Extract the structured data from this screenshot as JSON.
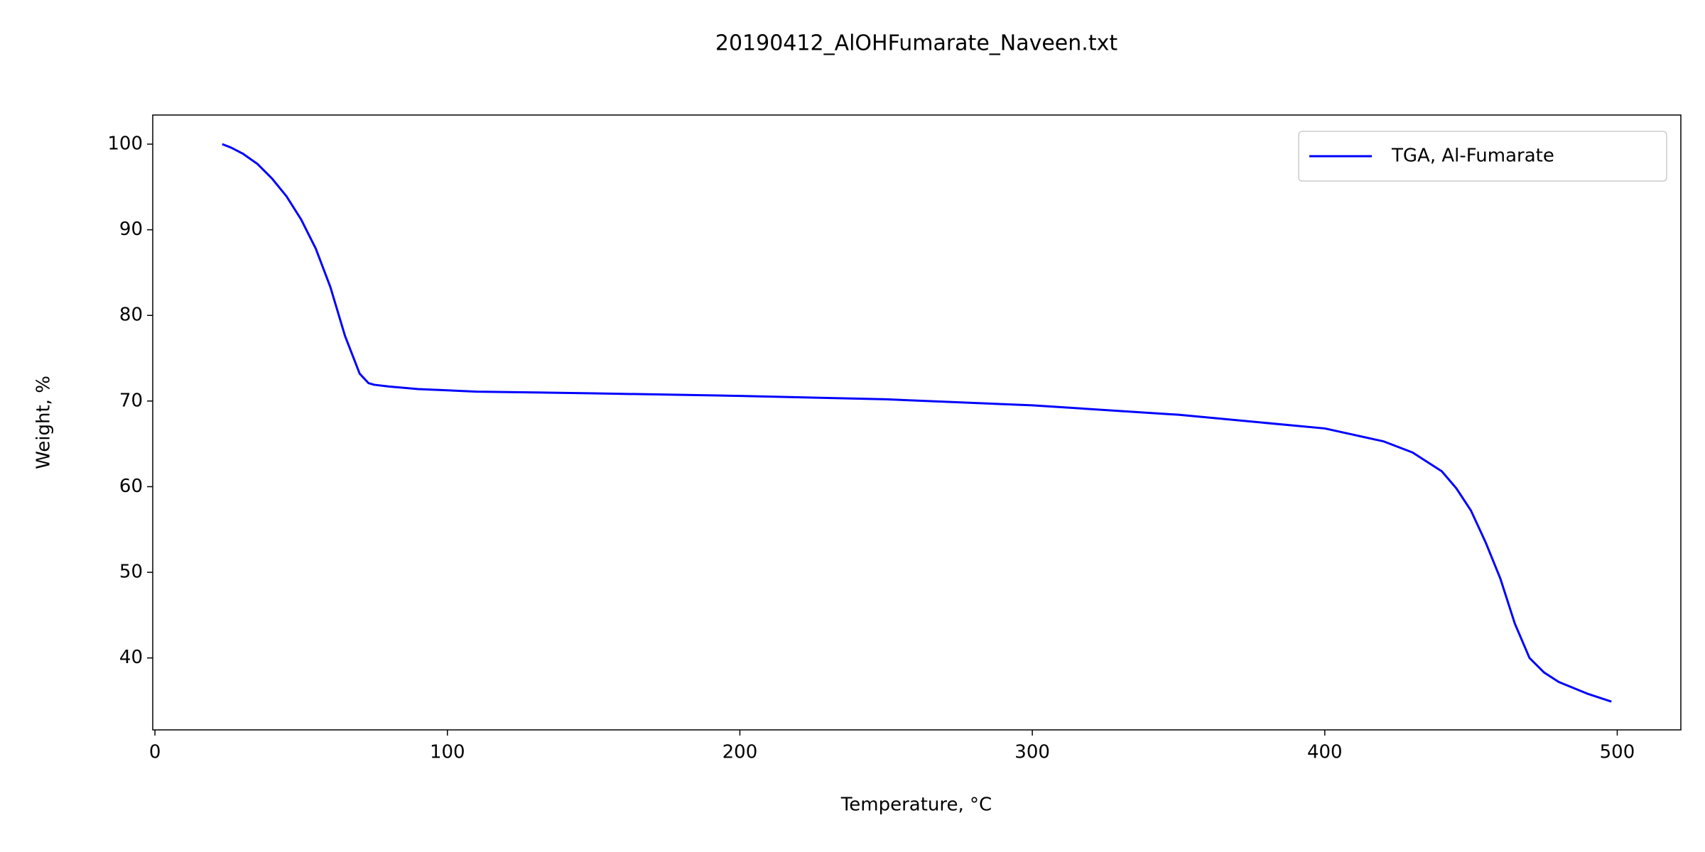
{
  "chart_data": {
    "type": "line",
    "title": "20190412_AlOHFumarate_Naveen.txt",
    "x_label": "Temperature, °C",
    "y_label": "Weight, %",
    "x": [
      23,
      26,
      30,
      35,
      40,
      45,
      50,
      55,
      60,
      65,
      70,
      73,
      75,
      80,
      90,
      110,
      150,
      200,
      250,
      300,
      350,
      400,
      420,
      430,
      440,
      445,
      450,
      455,
      460,
      465,
      470,
      475,
      480,
      490,
      498
    ],
    "series": [
      {
        "name": "TGA, Al-Fumarate",
        "color": "#0000ff",
        "values": [
          100,
          99.6,
          98.9,
          97.7,
          96,
          93.9,
          91.2,
          87.8,
          83.3,
          77.6,
          73.2,
          72.1,
          71.9,
          71.7,
          71.4,
          71.1,
          70.9,
          70.6,
          70.2,
          69.5,
          68.4,
          66.8,
          65.3,
          64,
          61.8,
          59.8,
          57.2,
          53.5,
          49.3,
          44,
          40,
          38.3,
          37.2,
          35.8,
          34.9
        ]
      }
    ],
    "xlim": [
      -0.75,
      521.75
    ],
    "xticks": [
      0,
      100,
      200,
      300,
      400,
      500
    ],
    "ylim": [
      31.6,
      103.4
    ],
    "yticks": [
      40,
      50,
      60,
      70,
      80,
      90,
      100
    ],
    "legend": "upper right"
  }
}
